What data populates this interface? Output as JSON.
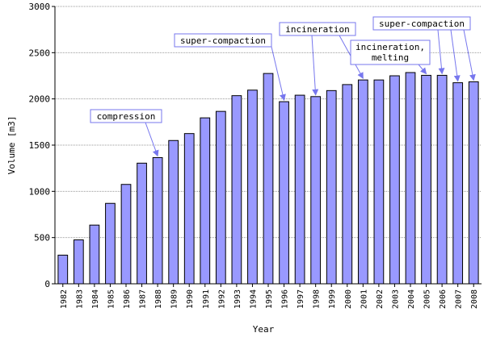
{
  "chart_data": {
    "type": "bar",
    "title": "",
    "xlabel": "Year",
    "ylabel": "Volume [m3]",
    "ylim": [
      0,
      3000
    ],
    "yticks": [
      0,
      500,
      1000,
      1500,
      2000,
      2500,
      3000
    ],
    "grid": true,
    "categories": [
      "1982",
      "1983",
      "1984",
      "1985",
      "1986",
      "1987",
      "1988",
      "1989",
      "1990",
      "1991",
      "1992",
      "1993",
      "1994",
      "1995",
      "1996",
      "1997",
      "1998",
      "1999",
      "2000",
      "2001",
      "2002",
      "2003",
      "2004",
      "2005",
      "2006",
      "2007",
      "2008"
    ],
    "values": [
      310,
      475,
      635,
      870,
      1075,
      1305,
      1365,
      1550,
      1625,
      1795,
      1865,
      2035,
      2095,
      2275,
      1970,
      2040,
      2025,
      2090,
      2155,
      2205,
      2205,
      2250,
      2285,
      2255,
      2255,
      2175,
      2185
    ],
    "colors": {
      "bar": "#9999ff",
      "annotation_border": "#7777ee",
      "arrow": "#7777ee"
    },
    "annotations": [
      {
        "text": "compression",
        "target": "1988"
      },
      {
        "text": "super-compaction",
        "target": "1996"
      },
      {
        "text": "incineration",
        "targets": [
          "1998",
          "2001"
        ]
      },
      {
        "text": "incineration,\nmelting",
        "target": "2005"
      },
      {
        "text": "super-compaction",
        "targets": [
          "2006",
          "2007",
          "2008"
        ]
      }
    ]
  }
}
